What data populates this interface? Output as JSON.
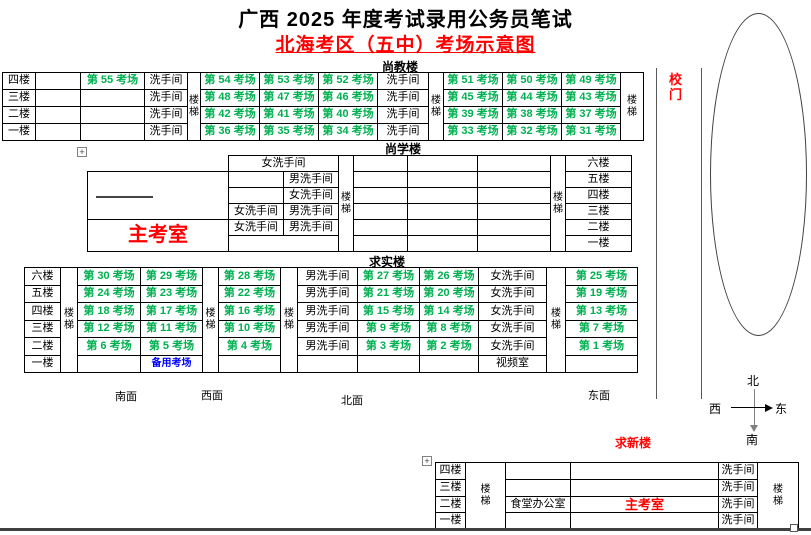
{
  "title": "广西 2025 年度考试录用公务员笔试",
  "subtitle": "北海考区（五中）考场示意图",
  "colors": {
    "room_green": "#00B050",
    "accent_red": "#FF0000",
    "reserve_blue": "#0000FF"
  },
  "gate": {
    "label": "校\n门"
  },
  "compass": {
    "north": "北",
    "south": "南",
    "east": "东",
    "west": "西"
  },
  "facades": {
    "south": "南面",
    "west": "西面",
    "north": "北面",
    "east": "东面"
  },
  "buildings": {
    "shangjiao": {
      "label": "尚教楼",
      "cols": [
        2,
        35,
        80,
        144,
        187,
        200,
        259,
        318,
        377,
        428,
        443,
        502,
        561,
        620,
        643
      ],
      "rows": [
        72,
        89,
        106,
        123,
        140
      ],
      "cells": [
        [
          0,
          0,
          1,
          1,
          "f",
          "四楼"
        ],
        [
          0,
          1,
          1,
          1,
          "f",
          "三楼"
        ],
        [
          0,
          2,
          1,
          1,
          "f",
          "二楼"
        ],
        [
          0,
          3,
          1,
          1,
          "f",
          "一楼"
        ],
        [
          1,
          0,
          1,
          1,
          "e",
          ""
        ],
        [
          1,
          1,
          1,
          1,
          "e",
          ""
        ],
        [
          1,
          2,
          1,
          1,
          "e",
          ""
        ],
        [
          1,
          3,
          1,
          1,
          "e",
          ""
        ],
        [
          2,
          0,
          1,
          1,
          "m",
          "第 55 考场"
        ],
        [
          2,
          1,
          1,
          1,
          "e",
          ""
        ],
        [
          2,
          2,
          1,
          1,
          "e",
          ""
        ],
        [
          2,
          3,
          1,
          1,
          "e",
          ""
        ],
        [
          3,
          0,
          1,
          1,
          "w",
          "洗手间"
        ],
        [
          3,
          1,
          1,
          1,
          "w",
          "洗手间"
        ],
        [
          3,
          2,
          1,
          1,
          "w",
          "洗手间"
        ],
        [
          3,
          3,
          1,
          1,
          "w",
          "洗手间"
        ],
        [
          4,
          0,
          1,
          4,
          "s",
          "楼\n梯"
        ],
        [
          5,
          0,
          1,
          1,
          "m",
          "第 54 考场"
        ],
        [
          6,
          0,
          1,
          1,
          "m",
          "第 53 考场"
        ],
        [
          7,
          0,
          1,
          1,
          "m",
          "第 52 考场"
        ],
        [
          5,
          1,
          1,
          1,
          "m",
          "第 48 考场"
        ],
        [
          6,
          1,
          1,
          1,
          "m",
          "第 47 考场"
        ],
        [
          7,
          1,
          1,
          1,
          "m",
          "第 46 考场"
        ],
        [
          5,
          2,
          1,
          1,
          "m",
          "第 42 考场"
        ],
        [
          6,
          2,
          1,
          1,
          "m",
          "第 41 考场"
        ],
        [
          7,
          2,
          1,
          1,
          "m",
          "第 40 考场"
        ],
        [
          5,
          3,
          1,
          1,
          "m",
          "第 36 考场"
        ],
        [
          6,
          3,
          1,
          1,
          "m",
          "第 35 考场"
        ],
        [
          7,
          3,
          1,
          1,
          "m",
          "第 34 考场"
        ],
        [
          8,
          0,
          1,
          1,
          "w",
          "洗手间"
        ],
        [
          8,
          1,
          1,
          1,
          "w",
          "洗手间"
        ],
        [
          8,
          2,
          1,
          1,
          "w",
          "洗手间"
        ],
        [
          8,
          3,
          1,
          1,
          "w",
          "洗手间"
        ],
        [
          9,
          0,
          1,
          4,
          "s",
          "楼\n梯"
        ],
        [
          10,
          0,
          1,
          1,
          "m",
          "第 51 考场"
        ],
        [
          11,
          0,
          1,
          1,
          "m",
          "第 50 考场"
        ],
        [
          12,
          0,
          1,
          1,
          "m",
          "第 49 考场"
        ],
        [
          10,
          1,
          1,
          1,
          "m",
          "第 45 考场"
        ],
        [
          11,
          1,
          1,
          1,
          "m",
          "第 44 考场"
        ],
        [
          12,
          1,
          1,
          1,
          "m",
          "第 43 考场"
        ],
        [
          10,
          2,
          1,
          1,
          "m",
          "第 39 考场"
        ],
        [
          11,
          2,
          1,
          1,
          "m",
          "第 38 考场"
        ],
        [
          12,
          2,
          1,
          1,
          "m",
          "第 37 考场"
        ],
        [
          10,
          3,
          1,
          1,
          "m",
          "第 33 考场"
        ],
        [
          11,
          3,
          1,
          1,
          "m",
          "第 32 考场"
        ],
        [
          12,
          3,
          1,
          1,
          "m",
          "第 31 考场"
        ],
        [
          13,
          0,
          1,
          4,
          "s",
          "楼\n梯"
        ]
      ]
    },
    "shangxue": {
      "label": "尚学楼",
      "cols": [
        87,
        228,
        283,
        338,
        353,
        407,
        477,
        550,
        565,
        631
      ],
      "rows": [
        155,
        171,
        187,
        203,
        219,
        235,
        251
      ],
      "cells": [
        [
          0,
          1,
          1,
          3,
          "bx",
          ""
        ],
        [
          0,
          4,
          1,
          2,
          "mb",
          "主考室"
        ],
        [
          1,
          0,
          2,
          1,
          "w",
          "女洗手间"
        ],
        [
          1,
          1,
          1,
          1,
          "e",
          ""
        ],
        [
          2,
          1,
          1,
          1,
          "w",
          "男洗手间"
        ],
        [
          1,
          2,
          1,
          1,
          "e",
          ""
        ],
        [
          2,
          2,
          1,
          1,
          "w",
          "女洗手间"
        ],
        [
          1,
          3,
          1,
          1,
          "w",
          "女洗手间"
        ],
        [
          2,
          3,
          1,
          1,
          "w",
          "男洗手间"
        ],
        [
          1,
          4,
          1,
          1,
          "w",
          "女洗手间"
        ],
        [
          2,
          4,
          1,
          1,
          "w",
          "男洗手间"
        ],
        [
          1,
          5,
          2,
          1,
          "e",
          ""
        ],
        [
          3,
          0,
          1,
          6,
          "s",
          "楼\n梯"
        ],
        [
          4,
          0,
          1,
          1,
          "e",
          ""
        ],
        [
          5,
          0,
          1,
          1,
          "e",
          ""
        ],
        [
          6,
          0,
          1,
          1,
          "e",
          ""
        ],
        [
          4,
          1,
          1,
          1,
          "e",
          ""
        ],
        [
          5,
          1,
          1,
          1,
          "e",
          ""
        ],
        [
          6,
          1,
          1,
          1,
          "e",
          ""
        ],
        [
          4,
          2,
          1,
          1,
          "e",
          ""
        ],
        [
          5,
          2,
          1,
          1,
          "e",
          ""
        ],
        [
          6,
          2,
          1,
          1,
          "e",
          ""
        ],
        [
          4,
          3,
          1,
          1,
          "e",
          ""
        ],
        [
          5,
          3,
          1,
          1,
          "e",
          ""
        ],
        [
          6,
          3,
          1,
          1,
          "e",
          ""
        ],
        [
          4,
          4,
          1,
          1,
          "e",
          ""
        ],
        [
          5,
          4,
          1,
          1,
          "e",
          ""
        ],
        [
          6,
          4,
          1,
          1,
          "e",
          ""
        ],
        [
          4,
          5,
          1,
          1,
          "e",
          ""
        ],
        [
          5,
          5,
          1,
          1,
          "e",
          ""
        ],
        [
          6,
          5,
          1,
          1,
          "e",
          ""
        ],
        [
          7,
          0,
          1,
          6,
          "s",
          "楼\n梯"
        ],
        [
          8,
          0,
          1,
          1,
          "f",
          "六楼"
        ],
        [
          8,
          1,
          1,
          1,
          "f",
          "五楼"
        ],
        [
          8,
          2,
          1,
          1,
          "f",
          "四楼"
        ],
        [
          8,
          3,
          1,
          1,
          "f",
          "三楼"
        ],
        [
          8,
          4,
          1,
          1,
          "f",
          "二楼"
        ],
        [
          8,
          5,
          1,
          1,
          "f",
          "一楼"
        ]
      ]
    },
    "qiushi": {
      "label": "求实楼",
      "cols": [
        24,
        60,
        77,
        140,
        202,
        218,
        280,
        297,
        357,
        419,
        478,
        546,
        565,
        637
      ],
      "rows": [
        267,
        285,
        302,
        320,
        337,
        355,
        372
      ],
      "cells": [
        [
          0,
          0,
          1,
          1,
          "f",
          "六楼"
        ],
        [
          0,
          1,
          1,
          1,
          "f",
          "五楼"
        ],
        [
          0,
          2,
          1,
          1,
          "f",
          "四楼"
        ],
        [
          0,
          3,
          1,
          1,
          "f",
          "三楼"
        ],
        [
          0,
          4,
          1,
          1,
          "f",
          "二楼"
        ],
        [
          0,
          5,
          1,
          1,
          "f",
          "一楼"
        ],
        [
          1,
          0,
          1,
          6,
          "s",
          "楼\n梯"
        ],
        [
          2,
          0,
          1,
          1,
          "m",
          "第 30 考场"
        ],
        [
          2,
          1,
          1,
          1,
          "m",
          "第 24 考场"
        ],
        [
          2,
          2,
          1,
          1,
          "m",
          "第 18 考场"
        ],
        [
          2,
          3,
          1,
          1,
          "m",
          "第 12 考场"
        ],
        [
          2,
          4,
          1,
          1,
          "m",
          "第 6 考场"
        ],
        [
          2,
          5,
          1,
          1,
          "e",
          ""
        ],
        [
          3,
          0,
          1,
          1,
          "m",
          "第 29 考场"
        ],
        [
          3,
          1,
          1,
          1,
          "m",
          "第 23 考场"
        ],
        [
          3,
          2,
          1,
          1,
          "m",
          "第 17 考场"
        ],
        [
          3,
          3,
          1,
          1,
          "m",
          "第 11 考场"
        ],
        [
          3,
          4,
          1,
          1,
          "m",
          "第 5 考场"
        ],
        [
          3,
          5,
          1,
          1,
          "rv",
          "备用考场"
        ],
        [
          4,
          0,
          1,
          6,
          "s",
          "楼\n梯"
        ],
        [
          5,
          0,
          1,
          1,
          "m",
          "第 28 考场"
        ],
        [
          5,
          1,
          1,
          1,
          "m",
          "第 22 考场"
        ],
        [
          5,
          2,
          1,
          1,
          "m",
          "第 16 考场"
        ],
        [
          5,
          3,
          1,
          1,
          "m",
          "第 10 考场"
        ],
        [
          5,
          4,
          1,
          1,
          "m",
          "第 4 考场"
        ],
        [
          5,
          5,
          1,
          1,
          "e",
          ""
        ],
        [
          6,
          0,
          1,
          6,
          "s",
          "楼\n梯"
        ],
        [
          7,
          0,
          1,
          1,
          "w",
          "男洗手间"
        ],
        [
          7,
          1,
          1,
          1,
          "w",
          "男洗手间"
        ],
        [
          7,
          2,
          1,
          1,
          "w",
          "男洗手间"
        ],
        [
          7,
          3,
          1,
          1,
          "w",
          "男洗手间"
        ],
        [
          7,
          4,
          1,
          1,
          "w",
          "男洗手间"
        ],
        [
          7,
          5,
          1,
          1,
          "e",
          ""
        ],
        [
          8,
          0,
          1,
          1,
          "m",
          "第 27 考场"
        ],
        [
          8,
          1,
          1,
          1,
          "m",
          "第 21 考场"
        ],
        [
          8,
          2,
          1,
          1,
          "m",
          "第 15 考场"
        ],
        [
          8,
          3,
          1,
          1,
          "m",
          "第 9 考场"
        ],
        [
          8,
          4,
          1,
          1,
          "m",
          "第 3 考场"
        ],
        [
          8,
          5,
          1,
          1,
          "e",
          ""
        ],
        [
          9,
          0,
          1,
          1,
          "m",
          "第 26 考场"
        ],
        [
          9,
          1,
          1,
          1,
          "m",
          "第 20 考场"
        ],
        [
          9,
          2,
          1,
          1,
          "m",
          "第 14 考场"
        ],
        [
          9,
          3,
          1,
          1,
          "m",
          "第 8 考场"
        ],
        [
          9,
          4,
          1,
          1,
          "m",
          "第 2 考场"
        ],
        [
          9,
          5,
          1,
          1,
          "e",
          ""
        ],
        [
          10,
          0,
          1,
          1,
          "w",
          "女洗手间"
        ],
        [
          10,
          1,
          1,
          1,
          "w",
          "女洗手间"
        ],
        [
          10,
          2,
          1,
          1,
          "w",
          "女洗手间"
        ],
        [
          10,
          3,
          1,
          1,
          "w",
          "女洗手间"
        ],
        [
          10,
          4,
          1,
          1,
          "w",
          "女洗手间"
        ],
        [
          10,
          5,
          1,
          1,
          "vd",
          "视频室"
        ],
        [
          11,
          0,
          1,
          6,
          "s",
          "楼\n梯"
        ],
        [
          12,
          0,
          1,
          1,
          "m",
          "第 25 考场"
        ],
        [
          12,
          1,
          1,
          1,
          "m",
          "第 19 考场"
        ],
        [
          12,
          2,
          1,
          1,
          "m",
          "第 13 考场"
        ],
        [
          12,
          3,
          1,
          1,
          "m",
          "第 7 考场"
        ],
        [
          12,
          4,
          1,
          1,
          "m",
          "第 1 考场"
        ],
        [
          12,
          5,
          1,
          1,
          "e",
          ""
        ]
      ]
    },
    "qiuxin": {
      "label": "求新楼",
      "cols": [
        435,
        465,
        505,
        570,
        718,
        757,
        798
      ],
      "rows": [
        462,
        479,
        496,
        512,
        528
      ],
      "cells": [
        [
          0,
          0,
          1,
          1,
          "f",
          "四楼"
        ],
        [
          0,
          1,
          1,
          1,
          "f",
          "三楼"
        ],
        [
          0,
          2,
          1,
          1,
          "f",
          "二楼"
        ],
        [
          0,
          3,
          1,
          1,
          "f",
          "一楼"
        ],
        [
          1,
          0,
          1,
          4,
          "s",
          "楼\n梯"
        ],
        [
          2,
          0,
          1,
          1,
          "e",
          ""
        ],
        [
          2,
          1,
          1,
          1,
          "e",
          ""
        ],
        [
          2,
          2,
          1,
          1,
          "ct",
          "食堂办公室"
        ],
        [
          2,
          3,
          1,
          1,
          "e",
          ""
        ],
        [
          3,
          0,
          1,
          1,
          "e",
          ""
        ],
        [
          3,
          1,
          1,
          1,
          "e",
          ""
        ],
        [
          3,
          2,
          1,
          1,
          "mn",
          "主考室"
        ],
        [
          3,
          3,
          1,
          1,
          "e",
          ""
        ],
        [
          4,
          0,
          1,
          1,
          "w",
          "洗手间"
        ],
        [
          4,
          1,
          1,
          1,
          "w",
          "洗手间"
        ],
        [
          4,
          2,
          1,
          1,
          "w",
          "洗手间"
        ],
        [
          4,
          3,
          1,
          1,
          "w",
          "洗手间"
        ],
        [
          5,
          0,
          1,
          4,
          "s",
          "楼\n梯"
        ]
      ]
    }
  }
}
